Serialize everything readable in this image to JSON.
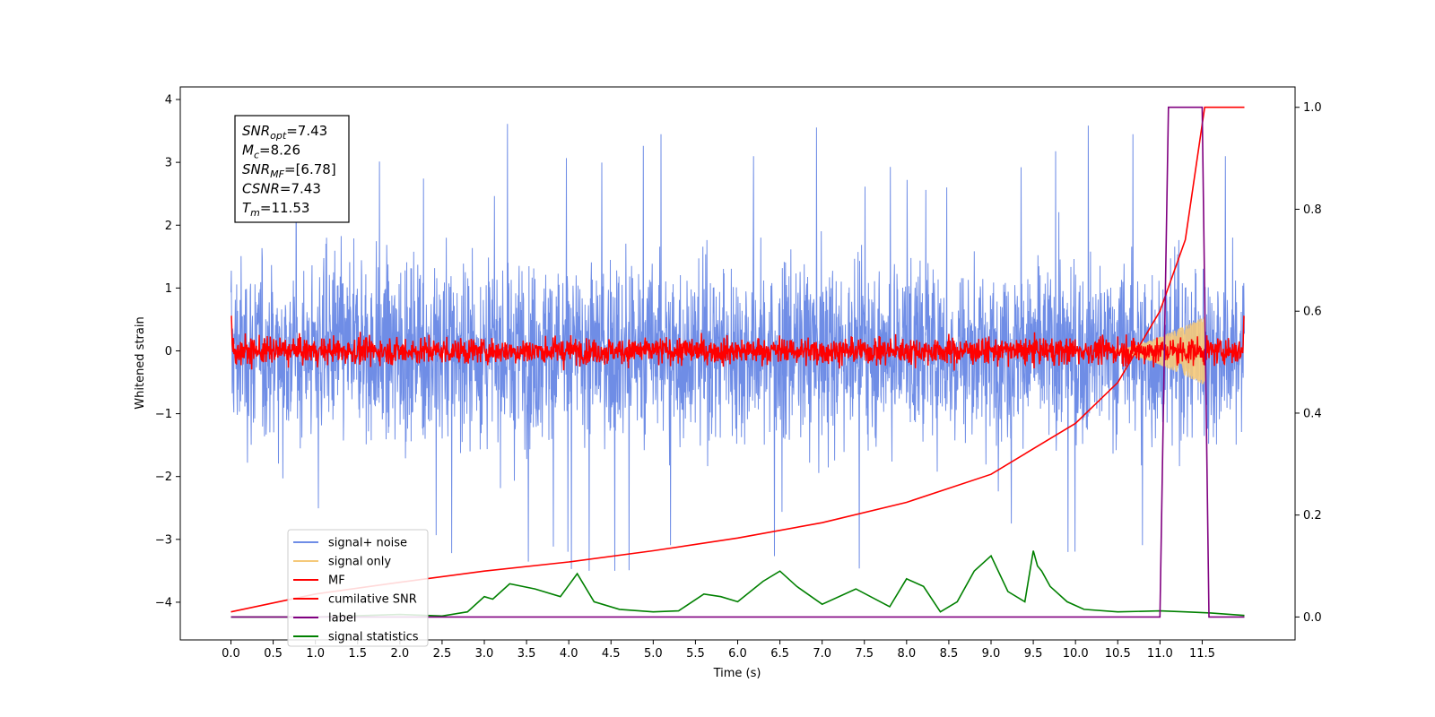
{
  "chart_data": {
    "type": "line",
    "xlabel": "Time (s)",
    "ylabel": "Whitened strain",
    "xlim": [
      -0.6,
      12.6
    ],
    "ylim": [
      -4.6,
      4.2
    ],
    "y2lim": [
      -0.045,
      1.04
    ],
    "x_ticks": [
      "0.0",
      "0.5",
      "1.0",
      "1.5",
      "2.0",
      "2.5",
      "3.0",
      "3.5",
      "4.0",
      "4.5",
      "5.0",
      "5.5",
      "6.0",
      "6.5",
      "7.0",
      "7.5",
      "8.0",
      "8.5",
      "9.0",
      "9.5",
      "10.0",
      "10.5",
      "11.0",
      "11.5"
    ],
    "x_tick_values": [
      0.0,
      0.5,
      1.0,
      1.5,
      2.0,
      2.5,
      3.0,
      3.5,
      4.0,
      4.5,
      5.0,
      5.5,
      6.0,
      6.5,
      7.0,
      7.5,
      8.0,
      8.5,
      9.0,
      9.5,
      10.0,
      10.5,
      11.0,
      11.5
    ],
    "y_ticks": [
      "4",
      "3",
      "2",
      "1",
      "0",
      "−1",
      "−2",
      "−3",
      "−4"
    ],
    "y_tick_values": [
      4,
      3,
      2,
      1,
      0,
      -1,
      -2,
      -3,
      -4
    ],
    "y2_ticks": [
      "1.0",
      "0.8",
      "0.6",
      "0.4",
      "0.2",
      "0.0"
    ],
    "y2_tick_values": [
      1.0,
      0.8,
      0.6,
      0.4,
      0.2,
      0.0
    ],
    "legend_position": "lower-left",
    "series": [
      {
        "name": "signal+ noise",
        "color": "#6f8de6",
        "axis": "left",
        "x_range": [
          0.0,
          12.0
        ],
        "amplitude": 1.0,
        "peak_max": 3.8,
        "peak_min": -3.5
      },
      {
        "name": "signal only",
        "color": "#f5c97a",
        "axis": "left",
        "x_range": [
          10.4,
          11.53
        ],
        "peak_amplitude": 0.55
      },
      {
        "name": "MF",
        "color": "#ff0000",
        "axis": "left",
        "x_range": [
          0.0,
          12.0
        ],
        "amplitude": 0.15,
        "peak_max": 0.55
      },
      {
        "name": "cumilative SNR",
        "color": "#ff0000",
        "axis": "right",
        "x": [
          0.0,
          1.0,
          2.0,
          3.0,
          4.0,
          5.0,
          6.0,
          7.0,
          8.0,
          9.0,
          10.0,
          10.5,
          11.0,
          11.3,
          11.53,
          12.0
        ],
        "y": [
          0.01,
          0.045,
          0.068,
          0.09,
          0.108,
          0.13,
          0.155,
          0.185,
          0.225,
          0.28,
          0.38,
          0.46,
          0.6,
          0.74,
          1.0,
          1.0
        ]
      },
      {
        "name": "label",
        "color": "#800080",
        "axis": "right",
        "x": [
          0.0,
          11.0,
          11.1,
          11.5,
          11.58,
          12.0
        ],
        "y": [
          0.0,
          0.0,
          1.0,
          1.0,
          0.0,
          0.0
        ]
      },
      {
        "name": "signal statistics",
        "color": "#008000",
        "axis": "right",
        "x": [
          0.0,
          1.0,
          2.0,
          2.5,
          2.8,
          3.0,
          3.1,
          3.3,
          3.6,
          3.9,
          4.1,
          4.3,
          4.6,
          5.0,
          5.3,
          5.6,
          5.8,
          6.0,
          6.3,
          6.5,
          6.7,
          7.0,
          7.4,
          7.8,
          8.0,
          8.2,
          8.4,
          8.6,
          8.8,
          9.0,
          9.2,
          9.4,
          9.5,
          9.55,
          9.6,
          9.7,
          9.9,
          10.1,
          10.5,
          11.0,
          11.3,
          11.6,
          12.0
        ],
        "y": [
          0.0,
          0.0,
          0.005,
          0.002,
          0.01,
          0.04,
          0.035,
          0.065,
          0.055,
          0.04,
          0.085,
          0.03,
          0.015,
          0.01,
          0.012,
          0.045,
          0.04,
          0.03,
          0.07,
          0.09,
          0.06,
          0.025,
          0.055,
          0.02,
          0.075,
          0.06,
          0.01,
          0.03,
          0.09,
          0.12,
          0.05,
          0.03,
          0.13,
          0.1,
          0.09,
          0.06,
          0.03,
          0.015,
          0.01,
          0.012,
          0.01,
          0.008,
          0.003
        ]
      }
    ],
    "annotation": [
      {
        "base": "SNR",
        "sub": "opt",
        "value": "=7.43"
      },
      {
        "base": "M",
        "sub": "c",
        "value": "=8.26"
      },
      {
        "base": "SNR",
        "sub": "MF",
        "value": "=[6.78]"
      },
      {
        "base": "CSNR",
        "sub": "",
        "value": "=7.43"
      },
      {
        "base": "T",
        "sub": "m",
        "value": "=11.53"
      }
    ]
  }
}
